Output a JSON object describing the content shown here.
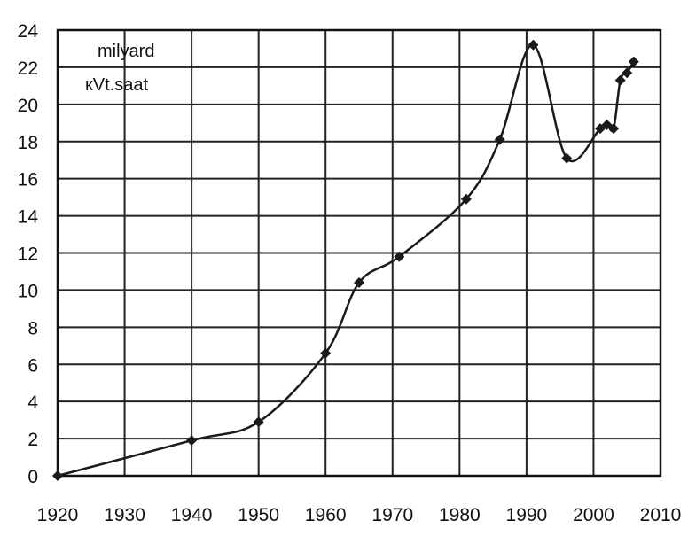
{
  "chart_data": {
    "type": "line",
    "title": "",
    "unit_label_lines": [
      "milyard",
      "кVt.saat"
    ],
    "xlabel": "",
    "ylabel": "",
    "xlim": [
      1920,
      2010
    ],
    "ylim": [
      0,
      24
    ],
    "grid": true,
    "x_ticks": [
      1920,
      1930,
      1940,
      1950,
      1960,
      1970,
      1980,
      1990,
      2000,
      2010
    ],
    "y_ticks": [
      0,
      2,
      4,
      6,
      8,
      10,
      12,
      14,
      16,
      18,
      20,
      22,
      24
    ],
    "marker": "diamond",
    "line_color": "#1a1a1a",
    "series": [
      {
        "x": [
          1920,
          1940,
          1950,
          1960,
          1965,
          1971,
          1981,
          1986,
          1991,
          1996,
          2001,
          2002,
          2003,
          2004,
          2005,
          2006
        ],
        "values": [
          0,
          1.9,
          2.9,
          6.6,
          10.4,
          11.8,
          14.9,
          18.1,
          23.2,
          17.1,
          18.7,
          18.9,
          18.7,
          21.3,
          21.7,
          22.3
        ]
      }
    ]
  }
}
